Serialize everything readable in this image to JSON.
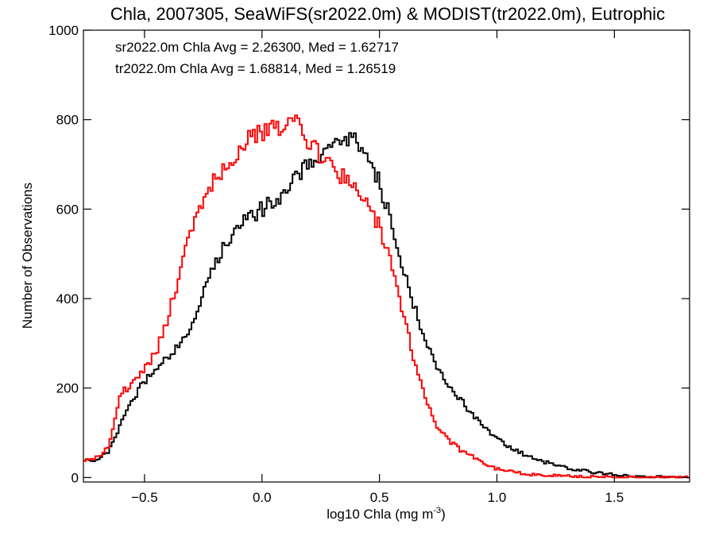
{
  "chart_data": {
    "type": "line",
    "title": "Chla, 2007305, SeaWiFS(sr2022.0m) & MODIST(tr2022.0m), Eutrophic",
    "xlabel_main": "log10 Chla (mg m",
    "xlabel_sup": "-3",
    "xlabel_close": ")",
    "ylabel": "Number of Observations",
    "xlim": [
      -0.76,
      1.82
    ],
    "ylim": [
      -10,
      1000
    ],
    "x_ticks": [
      -0.5,
      0.0,
      0.5,
      1.0,
      1.5
    ],
    "x_tick_labels": [
      "−0.5",
      "0.0",
      "0.5",
      "1.0",
      "1.5"
    ],
    "y_ticks": [
      0,
      200,
      400,
      600,
      800,
      1000
    ],
    "y_tick_labels": [
      "0",
      "200",
      "400",
      "600",
      "800",
      "1000"
    ],
    "grid": false,
    "annotations": [
      {
        "text": "sr2022.0m Chla Avg = 2.26300, Med = 1.62717",
        "color": "#000000"
      },
      {
        "text": "tr2022.0m Chla Avg = 1.68814, Med = 1.26519",
        "color": "#ff0000"
      }
    ],
    "series": [
      {
        "color": "#000000",
        "x": [
          -0.75,
          -0.7,
          -0.65,
          -0.6,
          -0.55,
          -0.5,
          -0.45,
          -0.4,
          -0.35,
          -0.3,
          -0.25,
          -0.2,
          -0.15,
          -0.1,
          -0.05,
          0.0,
          0.05,
          0.1,
          0.15,
          0.2,
          0.25,
          0.3,
          0.35,
          0.4,
          0.45,
          0.5,
          0.55,
          0.6,
          0.65,
          0.7,
          0.75,
          0.8,
          0.85,
          0.9,
          0.95,
          1.0,
          1.05,
          1.1,
          1.15,
          1.2,
          1.3,
          1.4,
          1.5,
          1.6,
          1.7,
          1.8
        ],
        "y": [
          40,
          38,
          60,
          120,
          175,
          215,
          240,
          270,
          300,
          340,
          410,
          480,
          530,
          560,
          580,
          600,
          620,
          640,
          670,
          700,
          720,
          740,
          750,
          755,
          720,
          660,
          570,
          470,
          380,
          300,
          240,
          200,
          170,
          140,
          110,
          85,
          70,
          55,
          45,
          35,
          22,
          12,
          6,
          3,
          1,
          0
        ]
      },
      {
        "color": "#ff0000",
        "x": [
          -0.75,
          -0.7,
          -0.65,
          -0.6,
          -0.55,
          -0.5,
          -0.45,
          -0.4,
          -0.35,
          -0.3,
          -0.25,
          -0.2,
          -0.15,
          -0.1,
          -0.05,
          0.0,
          0.05,
          0.1,
          0.15,
          0.2,
          0.25,
          0.3,
          0.35,
          0.4,
          0.45,
          0.5,
          0.55,
          0.6,
          0.65,
          0.7,
          0.75,
          0.8,
          0.85,
          0.9,
          0.95,
          1.0,
          1.05,
          1.1,
          1.15,
          1.2,
          1.3,
          1.4,
          1.5,
          1.6,
          1.7,
          1.8
        ],
        "y": [
          40,
          45,
          70,
          190,
          210,
          240,
          280,
          360,
          450,
          560,
          620,
          670,
          700,
          730,
          760,
          770,
          780,
          790,
          800,
          750,
          720,
          690,
          670,
          640,
          610,
          560,
          480,
          370,
          260,
          170,
          110,
          80,
          60,
          45,
          30,
          20,
          15,
          10,
          7,
          5,
          3,
          2,
          1,
          1,
          0,
          0
        ]
      }
    ]
  }
}
